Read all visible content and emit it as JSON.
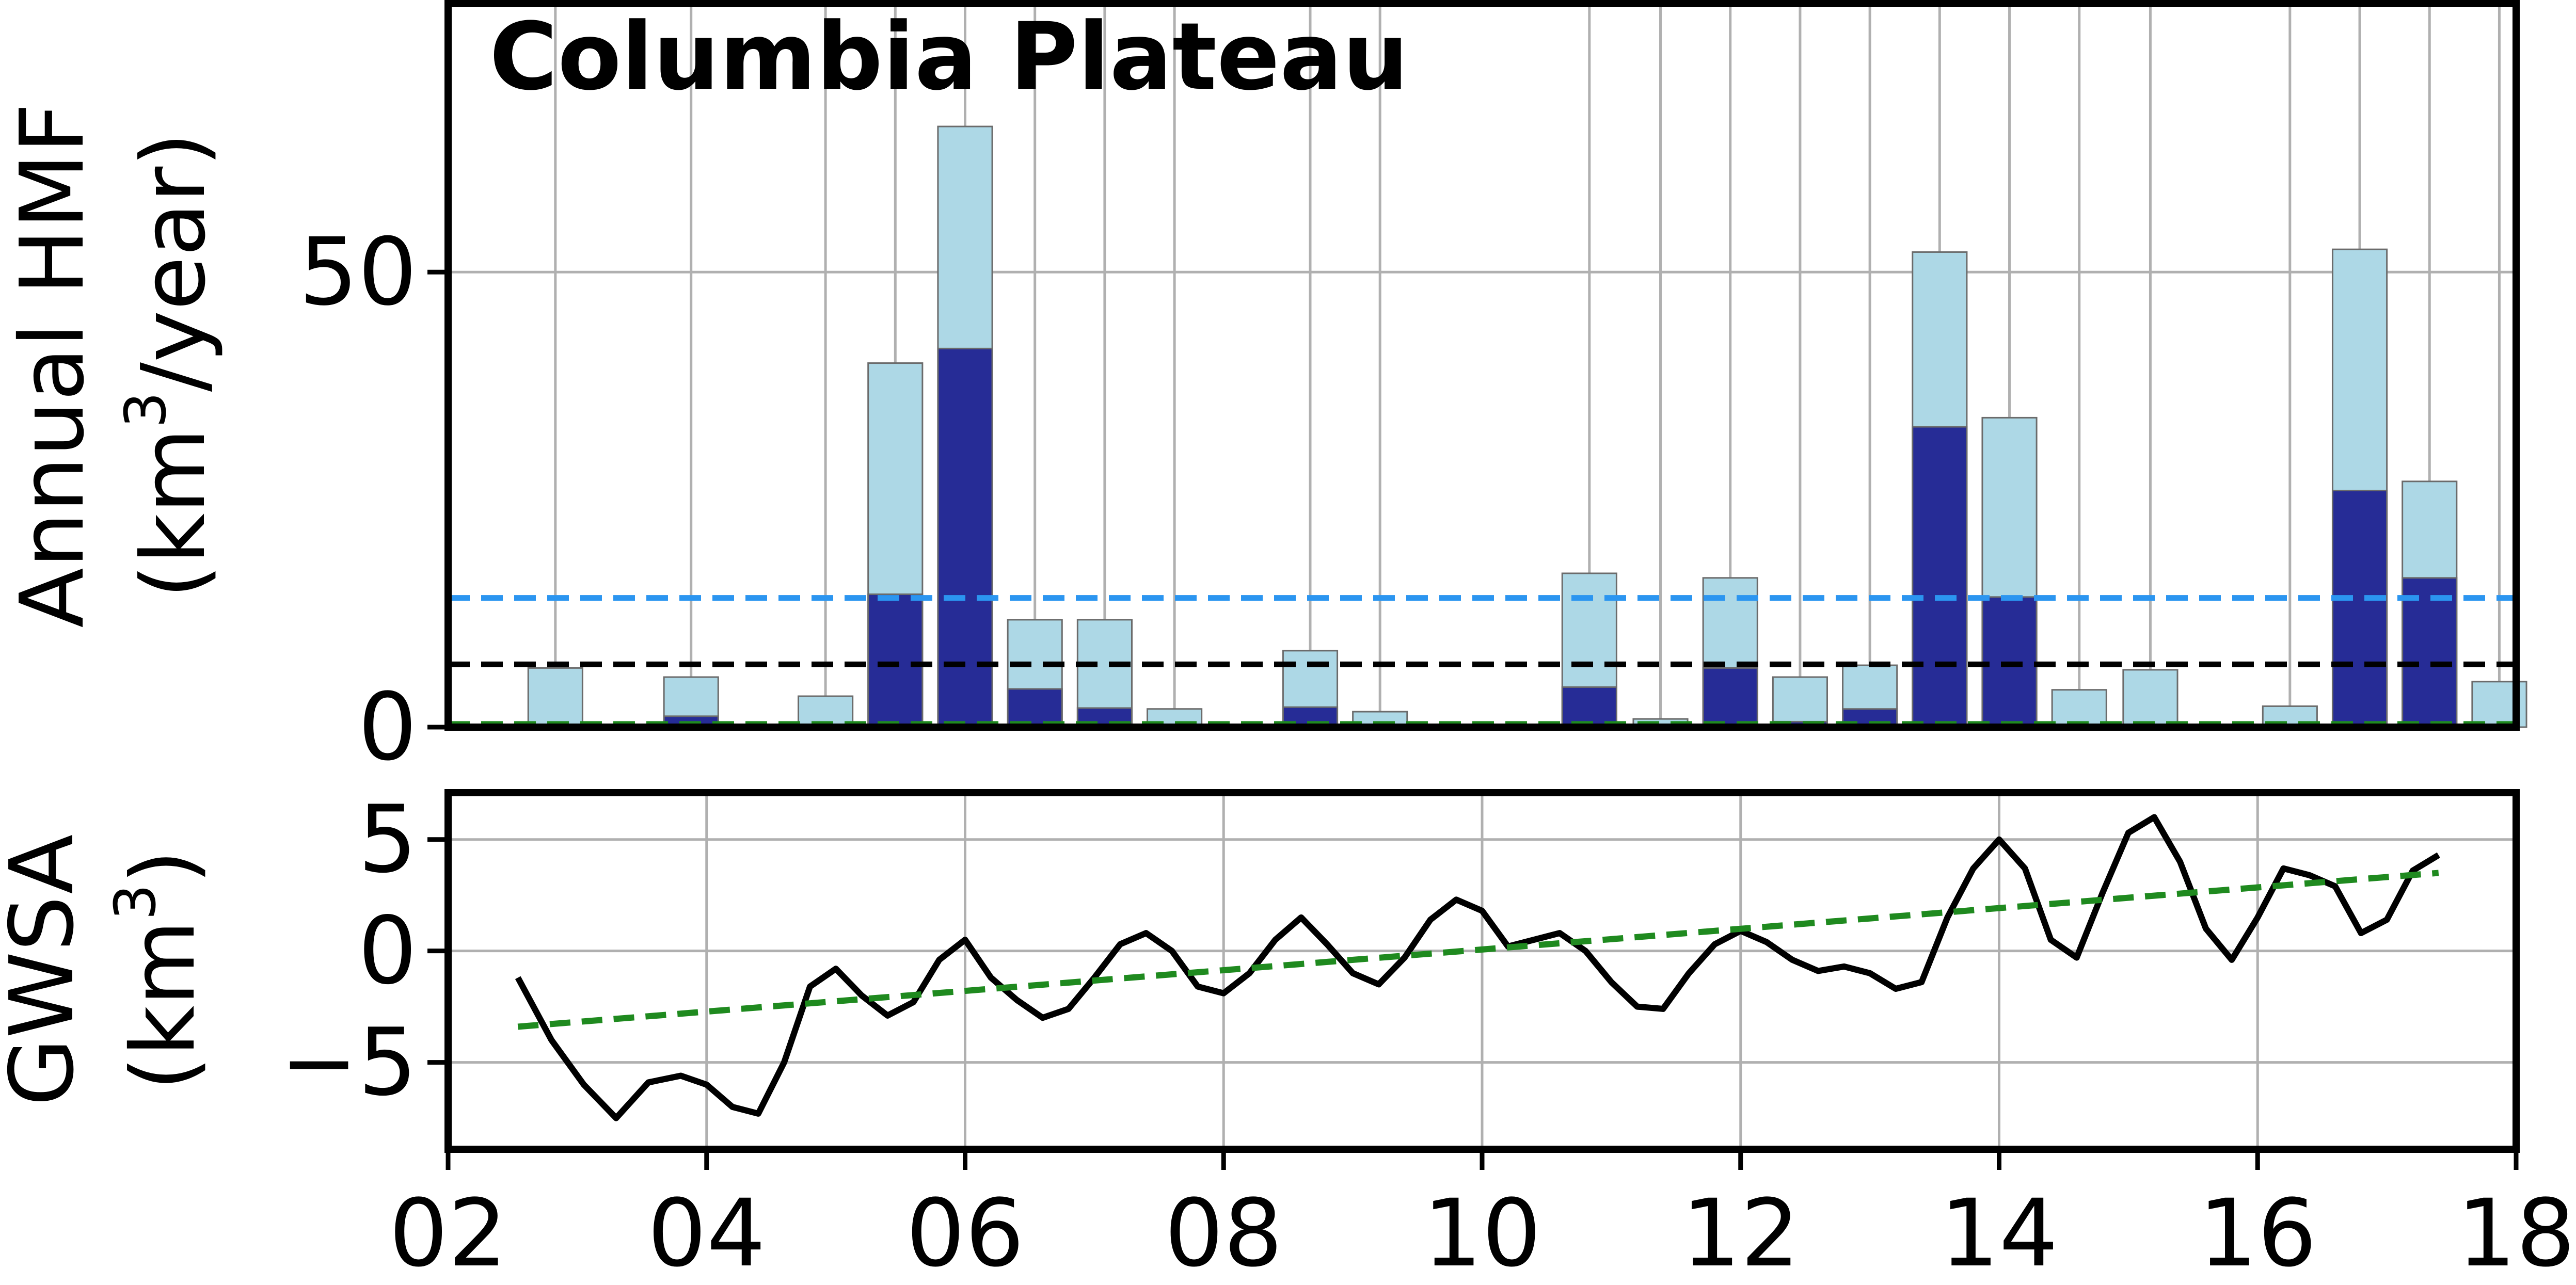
{
  "chart_data": [
    {
      "type": "bar",
      "title": "Columbia Plateau",
      "ylabel_line1": "Annual HMF",
      "ylabel_line2": "(km",
      "ylabel_sup": "3",
      "ylabel_tail": "/year)",
      "xlim": [
        2002,
        2018
      ],
      "ylim": [
        0,
        79.5
      ],
      "yticks": [
        0,
        50
      ],
      "bar_width_years": 0.42,
      "colors": {
        "total": "#add8e6",
        "part": "#262c96",
        "line_blue": "#2b95f0",
        "line_black": "#000000",
        "line_green": "#1f8a1f"
      },
      "bars": [
        {
          "x": 2002.83,
          "total": 6.5,
          "part": 0.3
        },
        {
          "x": 2003.88,
          "total": 5.5,
          "part": 1.2
        },
        {
          "x": 2004.92,
          "total": 3.4,
          "part": 0.1
        },
        {
          "x": 2005.46,
          "total": 40.0,
          "part": 14.6
        },
        {
          "x": 2006.0,
          "total": 66.0,
          "part": 41.6
        },
        {
          "x": 2006.54,
          "total": 11.8,
          "part": 4.2
        },
        {
          "x": 2007.08,
          "total": 11.8,
          "part": 2.1
        },
        {
          "x": 2007.62,
          "total": 2.0,
          "part": 0.0
        },
        {
          "x": 2008.67,
          "total": 8.4,
          "part": 2.2
        },
        {
          "x": 2009.21,
          "total": 1.7,
          "part": 0.0
        },
        {
          "x": 2010.83,
          "total": 16.9,
          "part": 4.4
        },
        {
          "x": 2011.38,
          "total": 0.9,
          "part": 0.0
        },
        {
          "x": 2011.92,
          "total": 16.4,
          "part": 6.5
        },
        {
          "x": 2012.46,
          "total": 5.5,
          "part": 0.6
        },
        {
          "x": 2013.0,
          "total": 6.8,
          "part": 2.0
        },
        {
          "x": 2013.54,
          "total": 52.2,
          "part": 33.0
        },
        {
          "x": 2014.08,
          "total": 34.0,
          "part": 14.3
        },
        {
          "x": 2014.62,
          "total": 4.1,
          "part": 0.0
        },
        {
          "x": 2015.17,
          "total": 6.3,
          "part": 0.0
        },
        {
          "x": 2016.25,
          "total": 2.3,
          "part": 0.0
        },
        {
          "x": 2016.79,
          "total": 52.5,
          "part": 26.0
        },
        {
          "x": 2017.33,
          "total": 27.0,
          "part": 16.4
        },
        {
          "x": 2017.87,
          "total": 5.0,
          "part": 0.0
        }
      ],
      "hlines": [
        {
          "name": "blue",
          "y": 14.2
        },
        {
          "name": "black",
          "y": 6.9
        },
        {
          "name": "green",
          "y": 0.35
        }
      ]
    },
    {
      "type": "line",
      "ylabel_line1": "GWSA",
      "ylabel_line2": "(km",
      "ylabel_sup": "3",
      "ylabel_tail": ")",
      "xlim": [
        2002,
        2018
      ],
      "ylim": [
        -8.9,
        7.1
      ],
      "yticks": [
        -5,
        0,
        5
      ],
      "ytick_labels": [
        "−5",
        "0",
        "5"
      ],
      "xticks": [
        2002,
        2004,
        2006,
        2008,
        2010,
        2012,
        2014,
        2016,
        2018
      ],
      "xtick_labels": [
        "02",
        "04",
        "06",
        "08",
        "10",
        "12",
        "14",
        "16",
        "18"
      ],
      "series": [
        {
          "name": "GWSA",
          "x": [
            2002.54,
            2002.8,
            2003.05,
            2003.3,
            2003.55,
            2003.8,
            2004.0,
            2004.2,
            2004.4,
            2004.6,
            2004.8,
            2005.0,
            2005.2,
            2005.4,
            2005.6,
            2005.8,
            2006.0,
            2006.2,
            2006.4,
            2006.6,
            2006.8,
            2007.0,
            2007.2,
            2007.4,
            2007.6,
            2007.8,
            2008.0,
            2008.2,
            2008.4,
            2008.6,
            2008.8,
            2009.0,
            2009.2,
            2009.4,
            2009.6,
            2009.8,
            2010.0,
            2010.2,
            2010.4,
            2010.6,
            2010.8,
            2011.0,
            2011.2,
            2011.4,
            2011.6,
            2011.8,
            2012.0,
            2012.2,
            2012.4,
            2012.6,
            2012.8,
            2013.0,
            2013.2,
            2013.4,
            2013.6,
            2013.8,
            2014.0,
            2014.2,
            2014.4,
            2014.6,
            2014.8,
            2015.0,
            2015.2,
            2015.4,
            2015.6,
            2015.8,
            2016.0,
            2016.2,
            2016.4,
            2016.6,
            2016.8,
            2017.0,
            2017.2,
            2017.4
          ],
          "y": [
            -1.2,
            -4.0,
            -6.0,
            -7.5,
            -5.9,
            -5.6,
            -6.0,
            -7.0,
            -7.3,
            -5.0,
            -1.6,
            -0.8,
            -2.0,
            -2.9,
            -2.3,
            -0.4,
            0.5,
            -1.2,
            -2.2,
            -3.0,
            -2.6,
            -1.2,
            0.3,
            0.8,
            0.0,
            -1.6,
            -1.9,
            -1.0,
            0.5,
            1.5,
            0.3,
            -1.0,
            -1.5,
            -0.3,
            1.4,
            2.3,
            1.8,
            0.2,
            0.5,
            0.8,
            0.0,
            -1.4,
            -2.5,
            -2.6,
            -1.0,
            0.3,
            0.9,
            0.4,
            -0.4,
            -0.9,
            -0.7,
            -1.0,
            -1.7,
            -1.4,
            1.5,
            3.7,
            5.0,
            3.7,
            0.5,
            -0.3,
            2.6,
            5.3,
            6.0,
            4.0,
            1.0,
            -0.4,
            1.5,
            3.7,
            3.4,
            2.9,
            0.8,
            1.4,
            3.6,
            4.3
          ],
          "color": "#000000"
        },
        {
          "name": "trend",
          "x": [
            2002.54,
            2017.4
          ],
          "y": [
            -3.4,
            3.5
          ],
          "color": "#1f8a1f"
        }
      ]
    }
  ]
}
